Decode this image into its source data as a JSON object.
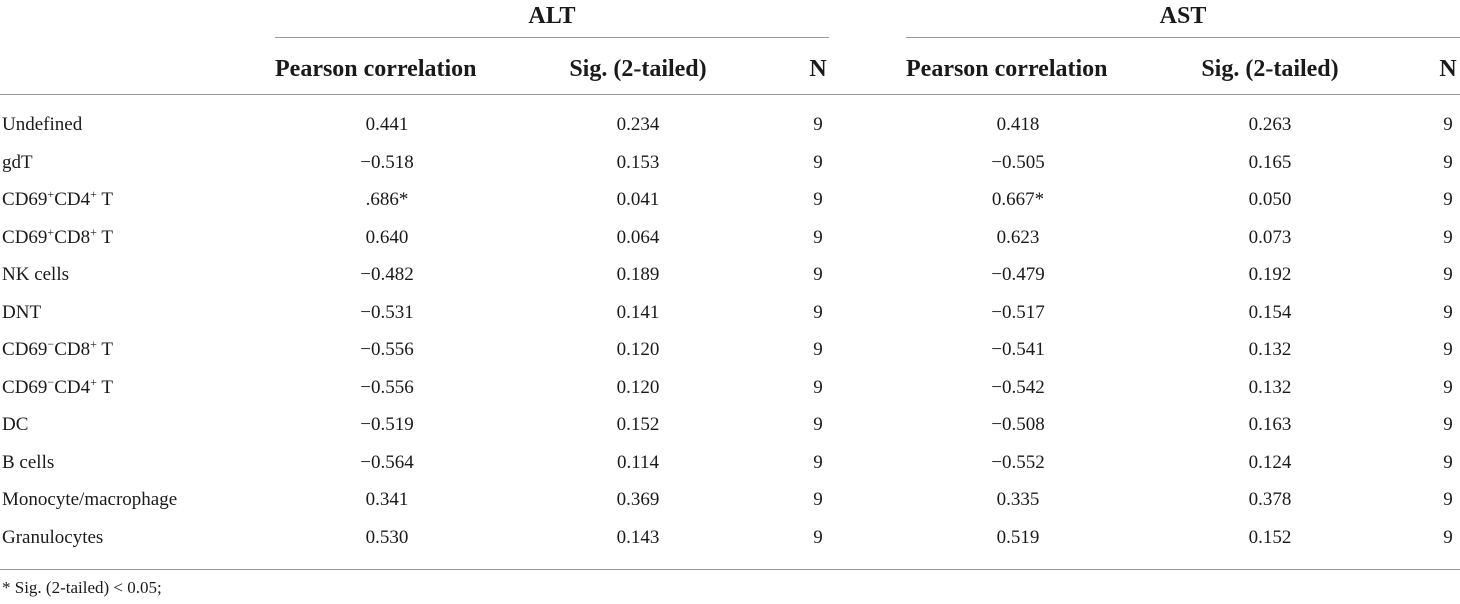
{
  "groups": {
    "alt": "ALT",
    "ast": "AST"
  },
  "columns": {
    "pearson": "Pearson correlation",
    "sig": "Sig. (2-tailed)",
    "n": "N"
  },
  "rows": [
    {
      "label": "Undefined",
      "alt_pc": "0.441",
      "alt_sig": "0.234",
      "alt_n": "9",
      "ast_pc": "0.418",
      "ast_sig": "0.263",
      "ast_n": "9"
    },
    {
      "label": "gdT",
      "alt_pc": "−0.518",
      "alt_sig": "0.153",
      "alt_n": "9",
      "ast_pc": "−0.505",
      "ast_sig": "0.165",
      "ast_n": "9"
    },
    {
      "label": "CD69⁺CD4⁺ T",
      "alt_pc": ".686*",
      "alt_sig": "0.041",
      "alt_n": "9",
      "ast_pc": "0.667*",
      "ast_sig": "0.050",
      "ast_n": "9"
    },
    {
      "label": "CD69⁺CD8⁺ T",
      "alt_pc": "0.640",
      "alt_sig": "0.064",
      "alt_n": "9",
      "ast_pc": "0.623",
      "ast_sig": "0.073",
      "ast_n": "9"
    },
    {
      "label": "NK cells",
      "alt_pc": "−0.482",
      "alt_sig": "0.189",
      "alt_n": "9",
      "ast_pc": "−0.479",
      "ast_sig": "0.192",
      "ast_n": "9"
    },
    {
      "label": "DNT",
      "alt_pc": "−0.531",
      "alt_sig": "0.141",
      "alt_n": "9",
      "ast_pc": "−0.517",
      "ast_sig": "0.154",
      "ast_n": "9"
    },
    {
      "label": "CD69⁻CD8⁺ T",
      "alt_pc": "−0.556",
      "alt_sig": "0.120",
      "alt_n": "9",
      "ast_pc": "−0.541",
      "ast_sig": "0.132",
      "ast_n": "9"
    },
    {
      "label": "CD69⁻CD4⁺ T",
      "alt_pc": "−0.556",
      "alt_sig": "0.120",
      "alt_n": "9",
      "ast_pc": "−0.542",
      "ast_sig": "0.132",
      "ast_n": "9"
    },
    {
      "label": "DC",
      "alt_pc": "−0.519",
      "alt_sig": "0.152",
      "alt_n": "9",
      "ast_pc": "−0.508",
      "ast_sig": "0.163",
      "ast_n": "9"
    },
    {
      "label": "B cells",
      "alt_pc": "−0.564",
      "alt_sig": "0.114",
      "alt_n": "9",
      "ast_pc": "−0.552",
      "ast_sig": "0.124",
      "ast_n": "9"
    },
    {
      "label": "Monocyte/macrophage",
      "alt_pc": "0.341",
      "alt_sig": "0.369",
      "alt_n": "9",
      "ast_pc": "0.335",
      "ast_sig": "0.378",
      "ast_n": "9"
    },
    {
      "label": "Granulocytes",
      "alt_pc": "0.530",
      "alt_sig": "0.143",
      "alt_n": "9",
      "ast_pc": "0.519",
      "ast_sig": "0.152",
      "ast_n": "9"
    }
  ],
  "footnote": "* Sig. (2-tailed) < 0.05;"
}
